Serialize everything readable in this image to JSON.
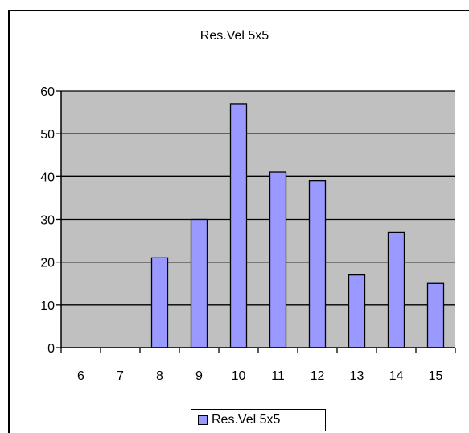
{
  "chart_data": {
    "type": "bar",
    "title": "Res.Vel 5x5",
    "xlabel": "",
    "ylabel": "",
    "categories": [
      "6",
      "7",
      "8",
      "9",
      "10",
      "11",
      "12",
      "13",
      "14",
      "15"
    ],
    "series": [
      {
        "name": "Res.Vel 5x5",
        "values": [
          0,
          0,
          21,
          30,
          57,
          41,
          39,
          17,
          27,
          15
        ]
      }
    ],
    "ylim": [
      0,
      60
    ],
    "yticks": [
      "0",
      "10",
      "20",
      "30",
      "40",
      "50",
      "60"
    ],
    "grid": true,
    "legend": "bottom",
    "colors": {
      "plot_background": "#c0c0c0",
      "bar_fill": "#9999ff",
      "bar_stroke": "#000000"
    }
  }
}
